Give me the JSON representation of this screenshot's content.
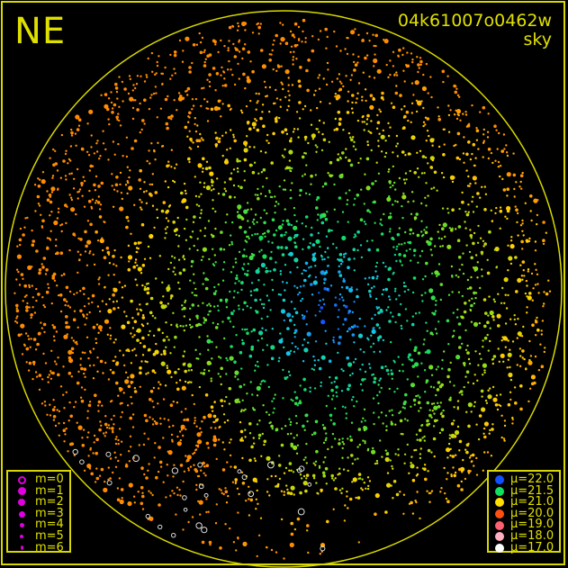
{
  "header": {
    "direction": "NE",
    "image_id": "04k61007o0462w",
    "mode": "sky"
  },
  "chart_data": {
    "type": "scatter",
    "title": "",
    "grid": false,
    "projection": "all-sky circle",
    "color_scale_by": "sky brightness (mu)",
    "mag_legend": {
      "position": "bottom-left",
      "items": [
        {
          "label": "m=0",
          "color": "#e000e0",
          "open": true
        },
        {
          "label": "m=1",
          "color": "#e000e0"
        },
        {
          "label": "m=2",
          "color": "#e000e0"
        },
        {
          "label": "m=3",
          "color": "#e000e0"
        },
        {
          "label": "m=4",
          "color": "#e000e0"
        },
        {
          "label": "m=5",
          "color": "#e000e0"
        },
        {
          "label": "m=6",
          "color": "#e000e0"
        }
      ]
    },
    "mu_legend": {
      "position": "bottom-right",
      "items": [
        {
          "label": "μ=22.0",
          "value": 22.0,
          "color": "#1050ff"
        },
        {
          "label": "μ=21.5",
          "value": 21.5,
          "color": "#10e060"
        },
        {
          "label": "μ=21.0",
          "value": 21.0,
          "color": "#ffe000"
        },
        {
          "label": "μ=20.0",
          "value": 20.0,
          "color": "#ff5010"
        },
        {
          "label": "μ=19.0",
          "value": 19.0,
          "color": "#ff6070"
        },
        {
          "label": "μ=18.0",
          "value": 18.0,
          "color": "#ffb0c0"
        },
        {
          "label": "μ=17.0",
          "value": 17.0,
          "color": "#ffffff"
        }
      ]
    },
    "colors": {
      "frame": "#d8d800",
      "text": "#e0e000",
      "background": "#000000"
    }
  }
}
